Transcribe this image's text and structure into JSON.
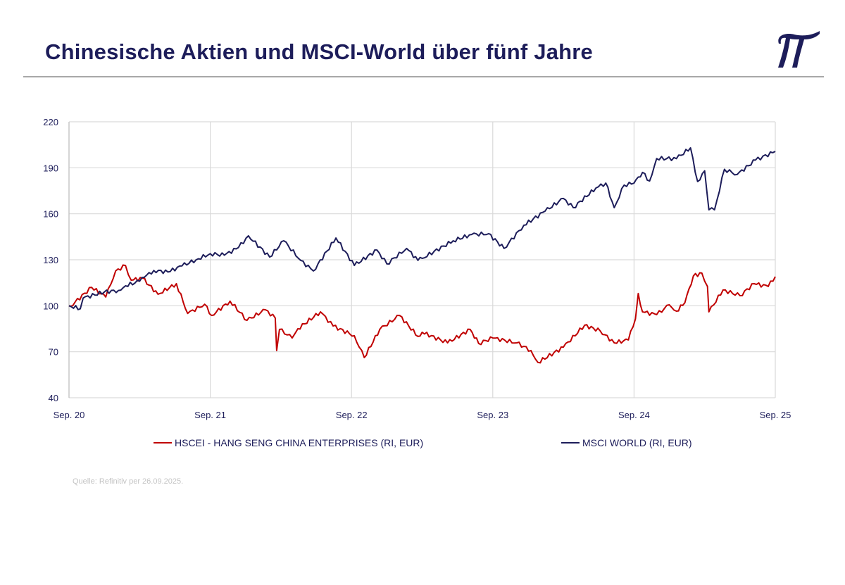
{
  "title": "Chinesische Aktien und MSCI-World über fünf Jahre",
  "logo_text": "π",
  "source": "Quelle: Refinitiv per 26.09.2025.",
  "chart_data": {
    "type": "line",
    "title": "Chinesische Aktien und MSCI-World über fünf Jahre",
    "xlabel": "",
    "ylabel": "",
    "ylim": [
      40,
      220
    ],
    "yticks": [
      40,
      70,
      100,
      130,
      160,
      190,
      220
    ],
    "xlim_years": [
      0,
      5
    ],
    "xticks": [
      {
        "t": 0,
        "label": "Sep. 20"
      },
      {
        "t": 1,
        "label": "Sep. 21"
      },
      {
        "t": 2,
        "label": "Sep. 22"
      },
      {
        "t": 3,
        "label": "Sep. 23"
      },
      {
        "t": 4,
        "label": "Sep. 24"
      },
      {
        "t": 5,
        "label": "Sep. 25"
      }
    ],
    "grid": true,
    "legend_position": "bottom",
    "series": [
      {
        "name": "HSCEI - HANG SENG CHINA ENTERPRISES (RI, EUR)",
        "color": "#c00000",
        "t": [
          0,
          0.01,
          0.16,
          0.26,
          0.33,
          0.4,
          0.44,
          0.52,
          0.63,
          0.76,
          0.84,
          0.96,
          1.01,
          1.14,
          1.26,
          1.39,
          1.46,
          1.47,
          1.49,
          1.58,
          1.62,
          1.78,
          1.87,
          2.02,
          2.09,
          2.2,
          2.34,
          2.47,
          2.5,
          2.68,
          2.84,
          2.9,
          3.0,
          3.17,
          3.27,
          3.32,
          3.5,
          3.65,
          3.76,
          3.86,
          3.96,
          4.01,
          4.03,
          4.06,
          4.16,
          4.25,
          4.3,
          4.36,
          4.42,
          4.48,
          4.52,
          4.53,
          4.63,
          4.75,
          4.85,
          4.95,
          5.0
        ],
        "values": [
          100,
          99.7,
          112,
          105.7,
          122.7,
          126.3,
          116.7,
          118,
          107.5,
          114.4,
          95,
          101,
          93.7,
          103,
          90.5,
          97.4,
          92,
          70.8,
          84.6,
          79,
          85,
          96,
          86.8,
          80.4,
          66.2,
          84.6,
          93.7,
          80,
          82.7,
          75.8,
          84.6,
          75.4,
          79,
          75.8,
          70.8,
          63,
          73,
          87.3,
          83.6,
          75.8,
          77.7,
          91.4,
          108,
          96,
          94.2,
          100.6,
          96.5,
          102,
          119.5,
          121.3,
          112.6,
          96,
          110.3,
          106.6,
          114.4,
          112.6,
          119
        ]
      },
      {
        "name": "MSCI WORLD (RI, EUR)",
        "color": "#1d1d5a",
        "t": [
          0,
          0.08,
          0.1,
          0.25,
          0.35,
          0.4,
          0.5,
          0.55,
          0.6,
          0.7,
          0.8,
          0.9,
          1.0,
          1.1,
          1.2,
          1.27,
          1.42,
          1.52,
          1.64,
          1.73,
          1.89,
          2.02,
          2.18,
          2.25,
          2.39,
          2.47,
          2.5,
          2.72,
          2.85,
          2.97,
          3.08,
          3.22,
          3.37,
          3.5,
          3.57,
          3.73,
          3.8,
          3.86,
          3.93,
          4.0,
          4.06,
          4.11,
          4.16,
          4.3,
          4.4,
          4.45,
          4.5,
          4.53,
          4.57,
          4.64,
          4.73,
          4.86,
          5.0
        ],
        "values": [
          100,
          98,
          105,
          109,
          110,
          113,
          116,
          120,
          123,
          122,
          126,
          130,
          134,
          133,
          138,
          145.6,
          131.8,
          142.4,
          129.6,
          122.7,
          144.2,
          126.3,
          136.4,
          127.3,
          137.4,
          129.6,
          130.9,
          142.4,
          146.5,
          147,
          137.4,
          152.5,
          161.7,
          170,
          164,
          176.8,
          180,
          164,
          178.7,
          180,
          187,
          181.4,
          196,
          196,
          203,
          181,
          188,
          162.6,
          162.6,
          189,
          185.6,
          195,
          200.7
        ]
      }
    ]
  }
}
